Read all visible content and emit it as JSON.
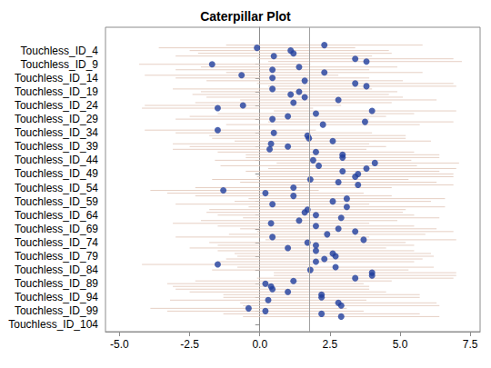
{
  "chart_data": {
    "type": "caterpillar",
    "title": "Caterpillar Plot",
    "categories": [
      null,
      null,
      null,
      null,
      null,
      null,
      null,
      null,
      "Touchless_ID_4",
      null,
      null,
      null,
      null,
      "Touchless_ID_9",
      null,
      null,
      null,
      null,
      "Touchless_ID_14",
      null,
      null,
      null,
      null,
      "Touchless_ID_19",
      null,
      null,
      null,
      null,
      "Touchless_ID_24",
      null,
      null,
      null,
      null,
      "Touchless_ID_29",
      null,
      null,
      null,
      null,
      "Touchless_ID_34",
      null,
      null,
      null,
      null,
      "Touchless_ID_39",
      null,
      null,
      null,
      null,
      "Touchless_ID_44",
      null,
      null,
      null,
      null,
      "Touchless_ID_49",
      null,
      null,
      null,
      null,
      "Touchless_ID_54",
      null,
      null,
      null,
      null,
      "Touchless_ID_59",
      null,
      null,
      null,
      null,
      "Touchless_ID_64",
      null,
      null,
      null,
      null,
      "Touchless_ID_69",
      null,
      null,
      null,
      null,
      "Touchless_ID_74",
      null,
      null,
      null,
      null,
      "Touchless_ID_79",
      null,
      null,
      null,
      null,
      "Touchless_ID_84",
      null,
      null,
      null,
      null,
      "Touchless_ID_89",
      null,
      null,
      null,
      null,
      "Touchless_ID_94",
      null,
      null,
      null,
      null,
      "Touchless_ID_99",
      null,
      null,
      null,
      null,
      "Touchless_ID_104",
      null,
      null
    ],
    "values": [
      null,
      null,
      null,
      null,
      null,
      null,
      2.3,
      -0.1,
      1.1,
      1.2,
      0.5,
      3.4,
      3.8,
      -1.7,
      1.4,
      0.45,
      2.3,
      -0.65,
      0.45,
      1.6,
      3.4,
      3.8,
      0.45,
      1.4,
      1.1,
      1.6,
      2.8,
      1.2,
      -0.6,
      -1.5,
      4.0,
      2.0,
      1.0,
      0.45,
      3.75,
      2.25,
      null,
      -1.5,
      0.5,
      1.7,
      1.75,
      2.6,
      0.4,
      1.0,
      0.35,
      2.0,
      2.95,
      2.95,
      1.9,
      4.1,
      2.1,
      3.8,
      2.95,
      3.5,
      3.4,
      1.8,
      2.8,
      3.5,
      1.2,
      -1.3,
      0.2,
      1.2,
      3.1,
      2.6,
      0.45,
      3.1,
      1.7,
      1.6,
      2.0,
      2.9,
      1.4,
      0.4,
      2.0,
      2.8,
      3.4,
      2.4,
      0.45,
      3.7,
      1.7,
      2.0,
      1.0,
      2.0,
      2.6,
      2.7,
      2.3,
      2.0,
      -1.5,
      2.7,
      1.8,
      4.0,
      4.0,
      3.4,
      1.2,
      0.2,
      0.4,
      0.45,
      1.0,
      2.2,
      2.2,
      0.3,
      2.8,
      2.9,
      -0.4,
      0.2,
      2.2,
      2.9,
      null,
      null,
      null,
      null,
      null
    ],
    "lower": [
      null,
      null,
      null,
      null,
      null,
      null,
      -1.2,
      -3.6,
      -2.5,
      -2.2,
      -3.0,
      -0.1,
      0.3,
      -4.3,
      -2.1,
      -3.0,
      -1.2,
      -4.1,
      -3.0,
      -1.9,
      -0.1,
      0.3,
      -3.1,
      -2.1,
      -2.4,
      -1.9,
      -0.7,
      -2.3,
      -4.1,
      -4.2,
      0.5,
      -1.5,
      -2.5,
      -3.0,
      0.3,
      -1.2,
      null,
      -4.1,
      -3.0,
      -1.8,
      -1.7,
      -0.9,
      -3.1,
      -2.5,
      -3.1,
      -1.5,
      -0.5,
      -0.5,
      -1.6,
      0.6,
      -1.4,
      0.3,
      -0.5,
      0.0,
      -0.1,
      -1.7,
      -0.7,
      0.0,
      -2.3,
      -3.9,
      -3.3,
      -2.3,
      -0.4,
      -0.9,
      -3.0,
      -0.4,
      -1.8,
      -1.9,
      -1.5,
      -0.6,
      -2.1,
      -3.1,
      -1.5,
      -0.7,
      -0.1,
      -1.1,
      -3.0,
      0.2,
      -1.8,
      -1.5,
      -2.5,
      -1.5,
      -0.9,
      -0.8,
      -1.2,
      -1.5,
      -4.2,
      -0.8,
      -1.7,
      0.5,
      0.5,
      -0.1,
      -2.3,
      -3.3,
      -3.1,
      -3.0,
      -2.5,
      -1.3,
      -1.3,
      -3.2,
      -0.7,
      -0.6,
      -3.9,
      -3.3,
      -1.3,
      -0.6,
      null,
      null,
      null,
      null,
      null
    ],
    "upper": [
      null,
      null,
      null,
      null,
      null,
      null,
      5.8,
      3.4,
      4.6,
      4.7,
      4.0,
      6.9,
      7.2,
      1.8,
      4.9,
      3.9,
      5.8,
      2.8,
      3.9,
      5.1,
      6.9,
      7.0,
      4.0,
      4.9,
      4.6,
      5.1,
      6.3,
      4.7,
      2.9,
      1.9,
      7.0,
      5.5,
      4.5,
      3.9,
      6.9,
      5.7,
      null,
      2.0,
      4.0,
      5.2,
      5.2,
      6.1,
      3.9,
      4.5,
      3.8,
      5.5,
      6.4,
      6.4,
      5.4,
      7.1,
      5.6,
      7.0,
      6.4,
      6.9,
      6.9,
      5.3,
      6.3,
      6.9,
      4.7,
      2.1,
      3.7,
      4.7,
      6.6,
      6.1,
      3.9,
      6.6,
      5.2,
      5.1,
      5.5,
      6.4,
      4.9,
      3.9,
      5.5,
      6.3,
      6.9,
      5.9,
      3.9,
      7.0,
      5.2,
      5.5,
      4.5,
      5.5,
      6.1,
      6.2,
      5.8,
      5.5,
      1.9,
      6.2,
      5.3,
      7.0,
      7.0,
      6.9,
      4.7,
      3.7,
      3.9,
      3.9,
      4.5,
      5.7,
      5.7,
      3.8,
      6.3,
      6.4,
      3.1,
      3.7,
      5.7,
      6.4,
      null,
      null,
      null,
      null,
      null
    ],
    "color": "#1f3d9c",
    "interval_color": "#e6cfc3",
    "reference_line": 1.76,
    "reference_color": "#a0a0a0",
    "xlim": [
      -5.5,
      7.85
    ],
    "xticks": [
      {
        "value": -5,
        "label": "-5.0"
      },
      -2.5,
      {
        "value": 0,
        "label": "0.0"
      },
      2.5,
      {
        "value": 5,
        "label": "5.0"
      },
      7.5
    ],
    "grid": false
  }
}
